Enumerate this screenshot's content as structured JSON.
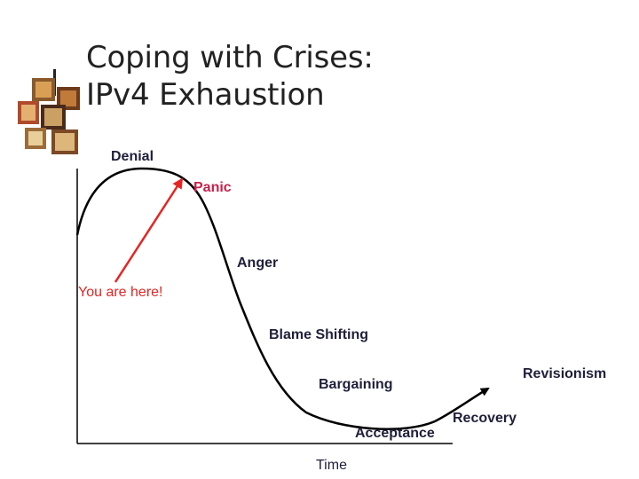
{
  "slide": {
    "title_line1": "Coping with Crises:",
    "title_line2": "IPv4 Exhaustion"
  },
  "diagram": {
    "stages": {
      "denial": "Denial",
      "panic": "Panic",
      "anger": "Anger",
      "you_are_here": "You are here!",
      "blame_shifting": "Blame Shifting",
      "bargaining": "Bargaining",
      "acceptance": "Acceptance",
      "recovery": "Recovery",
      "revisionism": "Revisionism"
    },
    "x_axis_label": "Time",
    "colors": {
      "curve": "#000000",
      "highlight": "#e52421",
      "panic_text": "#c4234a",
      "text": "#1f1f3a"
    }
  }
}
